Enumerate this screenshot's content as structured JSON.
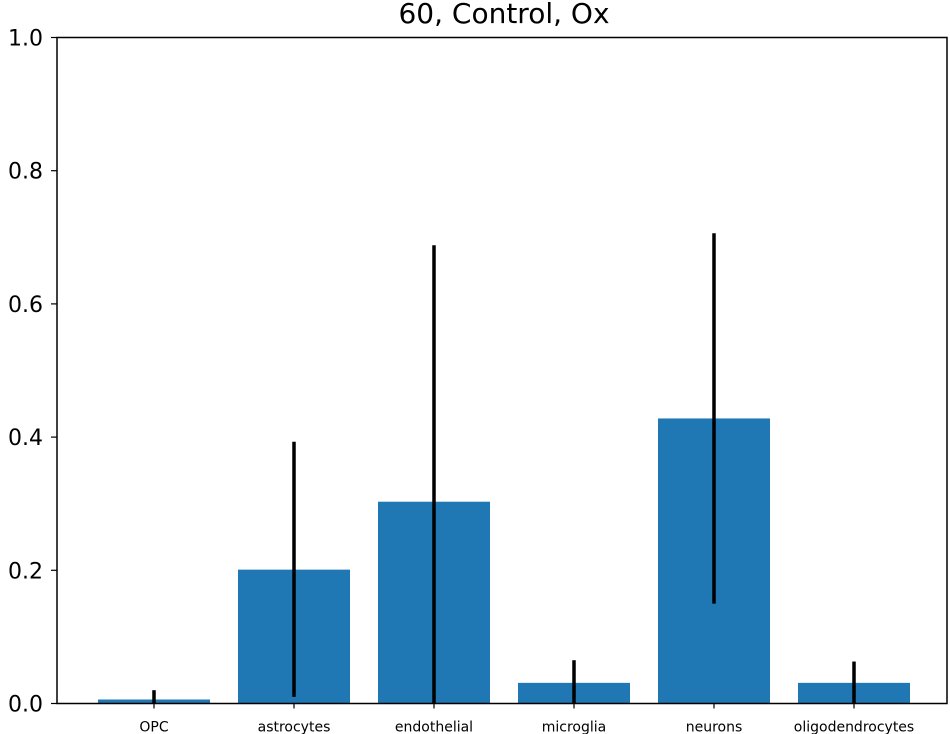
{
  "chart_data": {
    "type": "bar",
    "title": "60, Control, Ox",
    "xlabel": "",
    "ylabel": "",
    "ylim": [
      0,
      1.0
    ],
    "yticks": [
      "0.0",
      "0.2",
      "0.4",
      "0.6",
      "0.8",
      "1.0"
    ],
    "categories": [
      "OPC",
      "astrocytes",
      "endothelial",
      "microglia",
      "neurons",
      "oligodendrocytes"
    ],
    "values": [
      0.006,
      0.201,
      0.303,
      0.031,
      0.428,
      0.031
    ],
    "error_low": [
      0.0,
      0.01,
      0.0,
      0.0,
      0.15,
      0.0
    ],
    "error_high": [
      0.02,
      0.393,
      0.688,
      0.065,
      0.706,
      0.063
    ],
    "grid": false,
    "legend": "none",
    "bar_color": "#1f77b4",
    "error_color": "#000000"
  }
}
